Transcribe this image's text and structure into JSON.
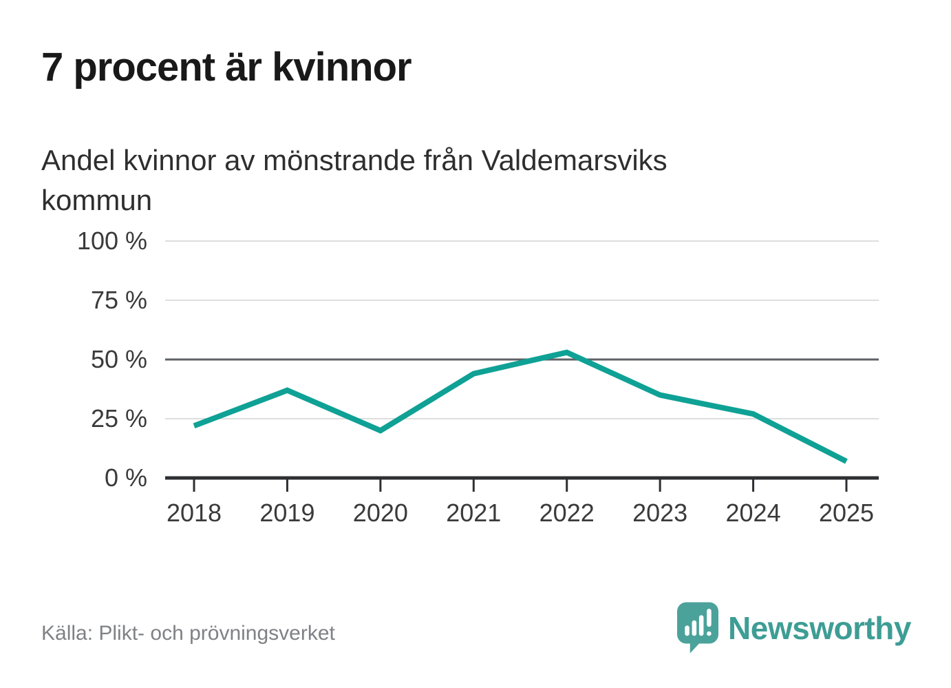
{
  "header": {
    "title": "7 procent är kvinnor",
    "subtitle": "Andel kvinnor av mönstrande från Valdemarsviks kommun"
  },
  "chart_data": {
    "type": "line",
    "title": "7 procent är kvinnor",
    "subtitle": "Andel kvinnor av mönstrande från Valdemarsviks kommun",
    "x": [
      "2018",
      "2019",
      "2020",
      "2021",
      "2022",
      "2023",
      "2024",
      "2025"
    ],
    "series": [
      {
        "name": "Andel kvinnor av mönstrande",
        "values": [
          22,
          37,
          20,
          44,
          53,
          35,
          27,
          7
        ]
      }
    ],
    "unit": "%",
    "ylim": [
      0,
      100
    ],
    "yticks": [
      {
        "value": 0,
        "label": "0 %"
      },
      {
        "value": 25,
        "label": "25 %"
      },
      {
        "value": 50,
        "label": "50 %"
      },
      {
        "value": 75,
        "label": "75 %"
      },
      {
        "value": 100,
        "label": "100 %"
      }
    ],
    "reference_line": 50,
    "grid": "horizontal",
    "legend": "none",
    "line_color": "#0fa195",
    "grid_color": "#dedede",
    "reference_color": "#5e6166",
    "axis_color": "#2e2f33",
    "label_color": "#3a3a3a"
  },
  "footer": {
    "source": "Källa: Plikt- och prövningsverket",
    "brand": "Newsworthy",
    "brand_color": "#3e9d95",
    "icon_color": "#4ba29b"
  }
}
